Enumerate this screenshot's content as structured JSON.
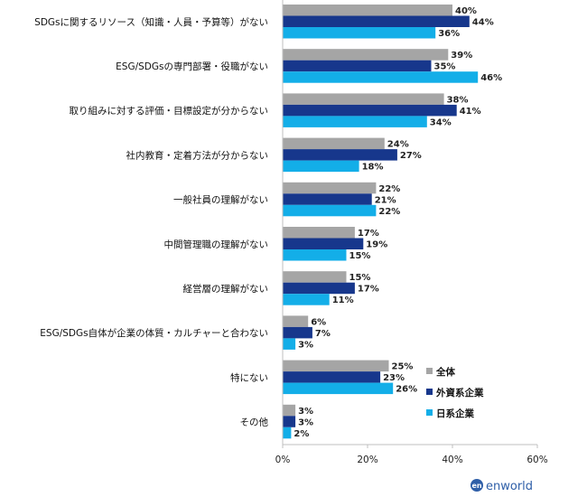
{
  "chart_data": {
    "type": "bar",
    "orientation": "horizontal",
    "categories": [
      "SDGsに関するリソース（知識・人員・予算等）がない",
      "ESG/SDGsの専門部署・役職がない",
      "取り組みに対する評価・目標設定が分からない",
      "社内教育・定着方法が分からない",
      "一般社員の理解がない",
      "中間管理職の理解がない",
      "経営層の理解がない",
      "ESG/SDGs自体が企業の体質・カルチャーと合わない",
      "特にない",
      "その他"
    ],
    "series": [
      {
        "name": "全体",
        "color": "#a5a5a5",
        "values": [
          40,
          39,
          38,
          24,
          22,
          17,
          15,
          6,
          25,
          3
        ]
      },
      {
        "name": "外資系企業",
        "color": "#17378c",
        "values": [
          44,
          35,
          41,
          27,
          21,
          19,
          17,
          7,
          23,
          3
        ]
      },
      {
        "name": "日系企業",
        "color": "#13aee8",
        "values": [
          36,
          46,
          34,
          18,
          22,
          15,
          11,
          3,
          26,
          2
        ]
      }
    ],
    "value_suffix": "%",
    "xlim": [
      0,
      60
    ],
    "xticks": [
      "0%",
      "20%",
      "40%",
      "60%"
    ],
    "xtick_values": [
      0,
      20,
      40,
      60
    ],
    "grid": false,
    "legend_position": "lower-right"
  },
  "brand": {
    "mark": "en",
    "name": "enworld",
    "color": "#2f5fa8"
  }
}
